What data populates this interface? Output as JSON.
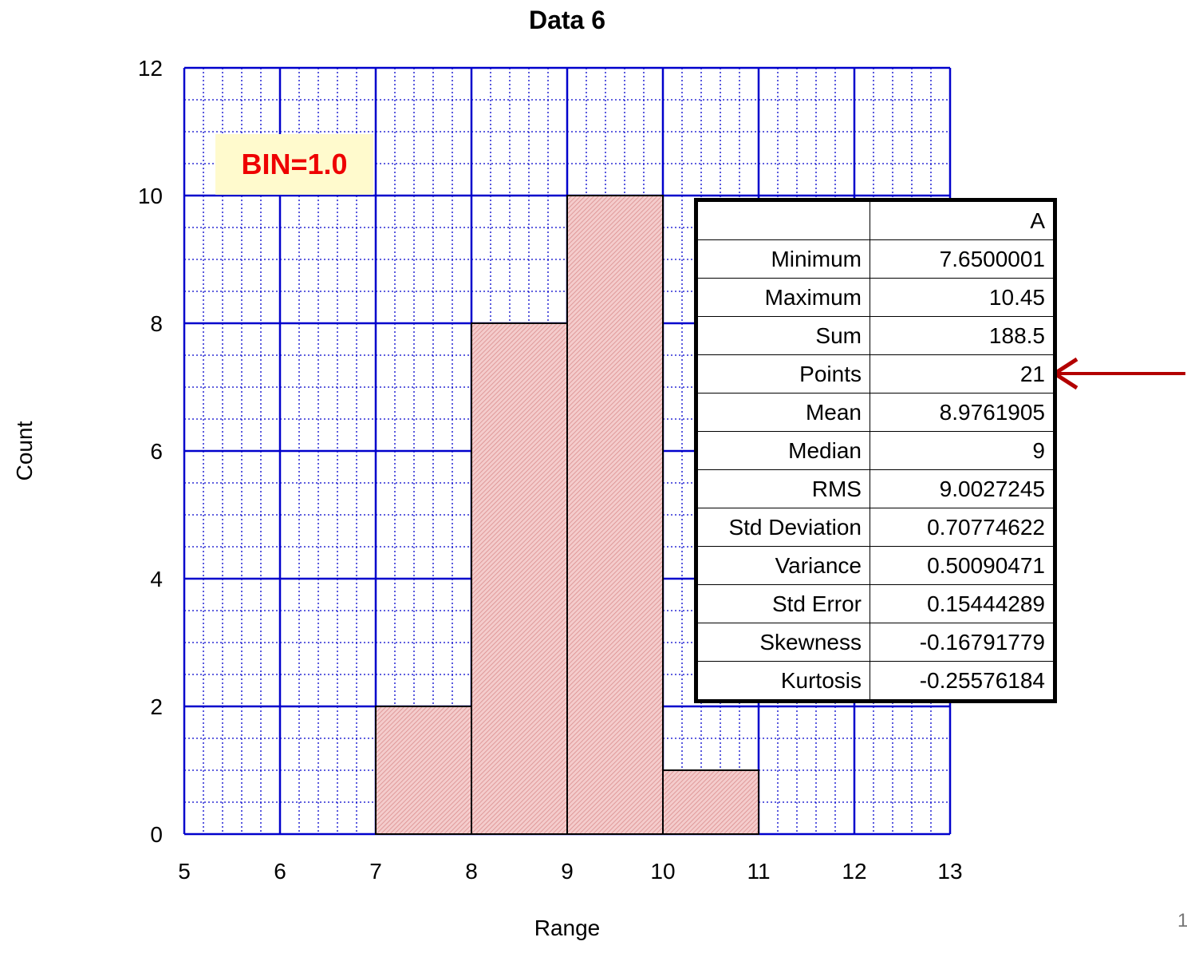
{
  "chart_data": {
    "type": "bar",
    "title": "Data 6",
    "xlabel": "Range",
    "ylabel": "Count",
    "xlim": [
      5,
      13
    ],
    "ylim": [
      0,
      12
    ],
    "x_ticks": [
      5,
      6,
      7,
      8,
      9,
      10,
      11,
      12,
      13
    ],
    "y_ticks": [
      0,
      2,
      4,
      6,
      8,
      10,
      12
    ],
    "grid": true,
    "bins": [
      {
        "start": 7,
        "end": 8,
        "count": 2
      },
      {
        "start": 8,
        "end": 9,
        "count": 8
      },
      {
        "start": 9,
        "end": 10,
        "count": 10
      },
      {
        "start": 10,
        "end": 11,
        "count": 1
      }
    ],
    "colors": {
      "grid": "#0000cc",
      "bar_fill": "#f4cccc",
      "bar_hatch": "#d98a8a",
      "bar_edge": "#000000",
      "arrow": "#b30000"
    }
  },
  "annotation": {
    "bin_label": "BIN=1.0"
  },
  "stats_table": {
    "column_header": "A",
    "rows": [
      {
        "label": "Minimum",
        "value": "7.6500001"
      },
      {
        "label": "Maximum",
        "value": "10.45"
      },
      {
        "label": "Sum",
        "value": "188.5"
      },
      {
        "label": "Points",
        "value": "21"
      },
      {
        "label": "Mean",
        "value": "8.9761905"
      },
      {
        "label": "Median",
        "value": "9"
      },
      {
        "label": "RMS",
        "value": "9.0027245"
      },
      {
        "label": "Std Deviation",
        "value": "0.70774622"
      },
      {
        "label": "Variance",
        "value": "0.50090471"
      },
      {
        "label": "Std Error",
        "value": "0.15444289"
      },
      {
        "label": "Skewness",
        "value": "-0.16791779"
      },
      {
        "label": "Kurtosis",
        "value": "-0.25576184"
      }
    ]
  },
  "page_number": "1"
}
